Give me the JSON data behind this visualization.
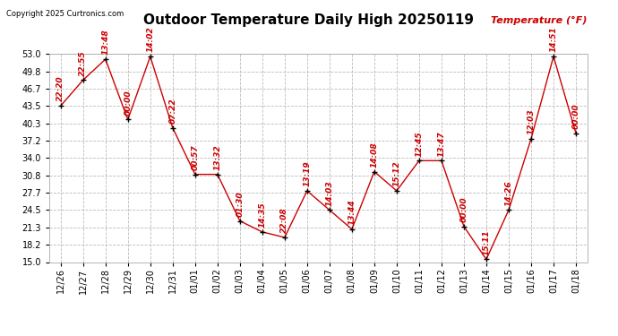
{
  "title": "Outdoor Temperature Daily High 20250119",
  "ylabel": "Temperature (°F)",
  "copyright": "Copyright 2025 Curtronics.com",
  "background_color": "#ffffff",
  "line_color": "#cc0000",
  "marker_color": "#000000",
  "ylabel_color": "#cc0000",
  "title_color": "#000000",
  "grid_color": "#bbbbbb",
  "dates": [
    "12/26",
    "12/27",
    "12/28",
    "12/29",
    "12/30",
    "12/31",
    "01/01",
    "01/02",
    "01/03",
    "01/04",
    "01/05",
    "01/06",
    "01/07",
    "01/08",
    "01/09",
    "01/10",
    "01/11",
    "01/12",
    "01/13",
    "01/14",
    "01/15",
    "01/16",
    "01/17",
    "01/18"
  ],
  "temps": [
    43.5,
    48.2,
    52.0,
    41.0,
    52.5,
    39.5,
    31.0,
    31.0,
    22.5,
    20.5,
    19.5,
    28.0,
    24.5,
    21.0,
    31.5,
    28.0,
    33.5,
    33.5,
    21.5,
    15.5,
    24.5,
    37.5,
    52.5,
    38.5
  ],
  "time_labels": [
    "22:20",
    "22:55",
    "13:48",
    "00:00",
    "14:02",
    "07:22",
    "00:57",
    "13:32",
    "01:30",
    "14:35",
    "22:08",
    "13:19",
    "14:03",
    "13:44",
    "14:08",
    "15:12",
    "12:45",
    "13:47",
    "00:00",
    "15:11",
    "14:26",
    "12:03",
    "14:51",
    "00:00"
  ],
  "ylim_min": 15.0,
  "ylim_max": 53.0,
  "yticks": [
    15.0,
    18.2,
    21.3,
    24.5,
    27.7,
    30.8,
    34.0,
    37.2,
    40.3,
    43.5,
    46.7,
    49.8,
    53.0
  ],
  "title_fontsize": 11,
  "label_fontsize": 6.5,
  "tick_fontsize": 7,
  "ylabel_fontsize": 8,
  "copyright_fontsize": 6
}
